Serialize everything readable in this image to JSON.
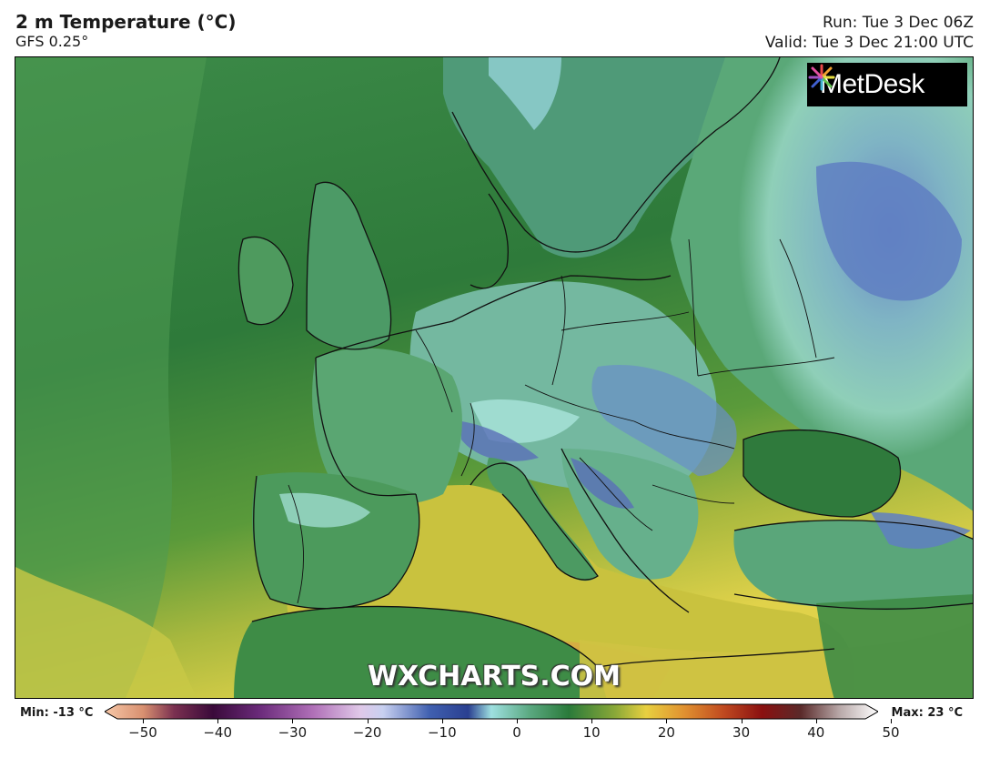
{
  "header": {
    "title": "2 m Temperature (°C)",
    "subtitle": "GFS 0.25°",
    "run": "Run: Tue 3 Dec 06Z",
    "valid": "Valid: Tue 3 Dec 21:00 UTC"
  },
  "logo": {
    "text": "MetDesk"
  },
  "watermark": "WXCHARTS.COM",
  "legend": {
    "min_label": "Min: -13 °C",
    "max_label": "Max: 23 °C",
    "ticks": [
      "−50",
      "−40",
      "−30",
      "−20",
      "−10",
      "0",
      "10",
      "20",
      "30",
      "40",
      "50"
    ],
    "tick_values": [
      -50,
      -40,
      -30,
      -20,
      -10,
      0,
      10,
      20,
      30,
      40,
      50
    ]
  },
  "colors": {
    "sea_cold": "#2f7a3c",
    "sea_warm": "#c8c840",
    "land_cold": "#6ab3a8",
    "frost": "#5c7fc0",
    "border": "#111111"
  }
}
